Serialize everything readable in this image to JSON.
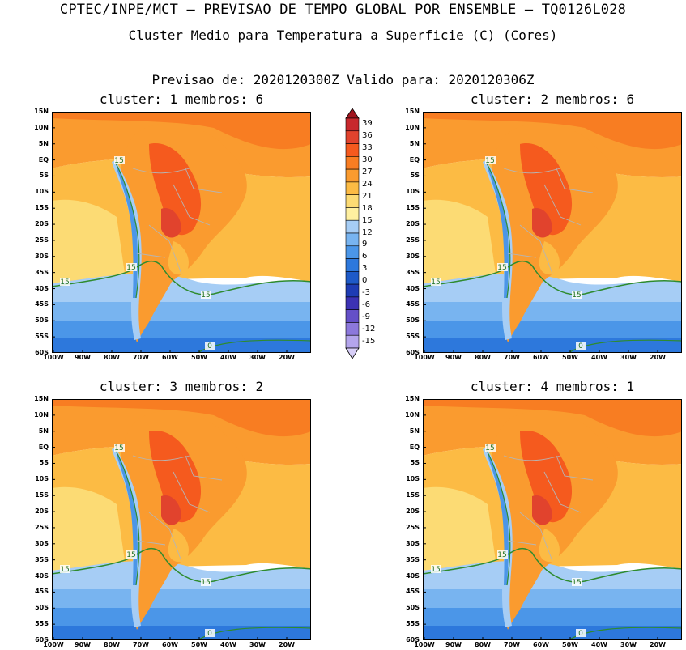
{
  "titles": {
    "line1": "CPTEC/INPE/MCT — PREVISAO DE TEMPO GLOBAL POR ENSEMBLE — TQ0126L028",
    "line2": "Cluster Medio para Temperatura a Superficie (C) (Cores)",
    "line3": "Previsao de: 2020120300Z    Valido para: 2020120306Z"
  },
  "clusters": [
    {
      "title": "cluster: 1   membros: 6"
    },
    {
      "title": "cluster: 2   membros: 6"
    },
    {
      "title": "cluster: 3   membros: 2"
    },
    {
      "title": "cluster: 4   membros: 1"
    }
  ],
  "lat_labels": [
    "15N",
    "10N",
    "5N",
    "EQ",
    "5S",
    "10S",
    "15S",
    "20S",
    "25S",
    "30S",
    "35S",
    "40S",
    "45S",
    "50S",
    "55S",
    "60S"
  ],
  "lon_labels": [
    "100W",
    "90W",
    "80W",
    "70W",
    "60W",
    "50W",
    "40W",
    "30W",
    "20W"
  ],
  "contour_labels": {
    "c15": "15",
    "c0": "0"
  },
  "colorbar": {
    "levels": [
      "39",
      "36",
      "33",
      "30",
      "27",
      "24",
      "21",
      "18",
      "15",
      "12",
      "9",
      "6",
      "3",
      "0",
      "-3",
      "-6",
      "-9",
      "-12",
      "-15"
    ],
    "colors": [
      "#a0141e",
      "#c8282d",
      "#e1432d",
      "#f55a1e",
      "#f87d22",
      "#fa9b2f",
      "#fcbb44",
      "#fcdb74",
      "#fff0a0",
      "#a6cdf5",
      "#78b4f0",
      "#4b96e8",
      "#2d78dc",
      "#1e5ac8",
      "#1e3cb4",
      "#3c32b4",
      "#6450c8",
      "#8c78dc",
      "#b4a5ec",
      "#d7cef7"
    ]
  }
}
